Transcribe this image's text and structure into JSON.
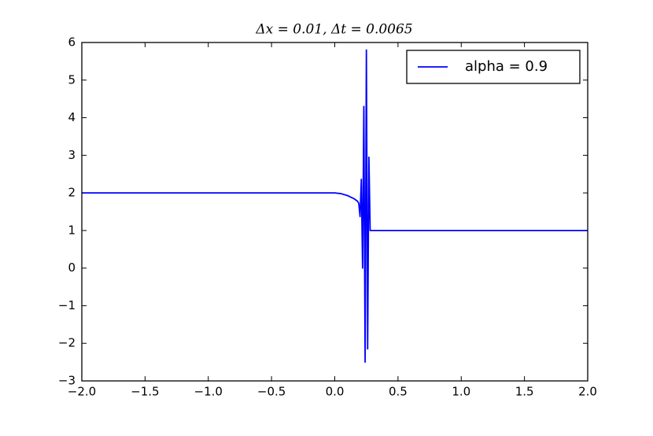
{
  "chart_data": {
    "type": "line",
    "title": "Δx = 0.01, Δt = 0.0065",
    "x": [
      -2.0,
      -1.0,
      0.0,
      0.05,
      0.1,
      0.15,
      0.18,
      0.19,
      0.2,
      0.21,
      0.22,
      0.23,
      0.24,
      0.25,
      0.26,
      0.27,
      0.28,
      0.29,
      1.0,
      2.0
    ],
    "series": [
      {
        "name": "alpha = 0.9",
        "color": "#0000ff",
        "values": [
          2.0,
          2.0,
          2.0,
          1.98,
          1.93,
          1.85,
          1.78,
          1.72,
          1.37,
          2.36,
          0.0,
          4.3,
          -2.5,
          5.8,
          -2.15,
          2.95,
          1.0,
          1.0,
          1.0,
          1.0
        ]
      }
    ],
    "xlim": [
      -2.0,
      2.0
    ],
    "xticks": [
      {
        "value": -2.0,
        "label": "−2.0"
      },
      {
        "value": -1.5,
        "label": "−1.5"
      },
      {
        "value": -1.0,
        "label": "−1.0"
      },
      {
        "value": -0.5,
        "label": "−0.5"
      },
      {
        "value": 0.0,
        "label": "0.0"
      },
      {
        "value": 0.5,
        "label": "0.5"
      },
      {
        "value": 1.0,
        "label": "1.0"
      },
      {
        "value": 1.5,
        "label": "1.5"
      },
      {
        "value": 2.0,
        "label": "2.0"
      }
    ],
    "ylim": [
      -3,
      6
    ],
    "yticks": [
      {
        "value": -3,
        "label": "−3"
      },
      {
        "value": -2,
        "label": "−2"
      },
      {
        "value": -1,
        "label": "−1"
      },
      0,
      1,
      2,
      3,
      4,
      5,
      6
    ],
    "grid": false,
    "legend": "upper right"
  }
}
